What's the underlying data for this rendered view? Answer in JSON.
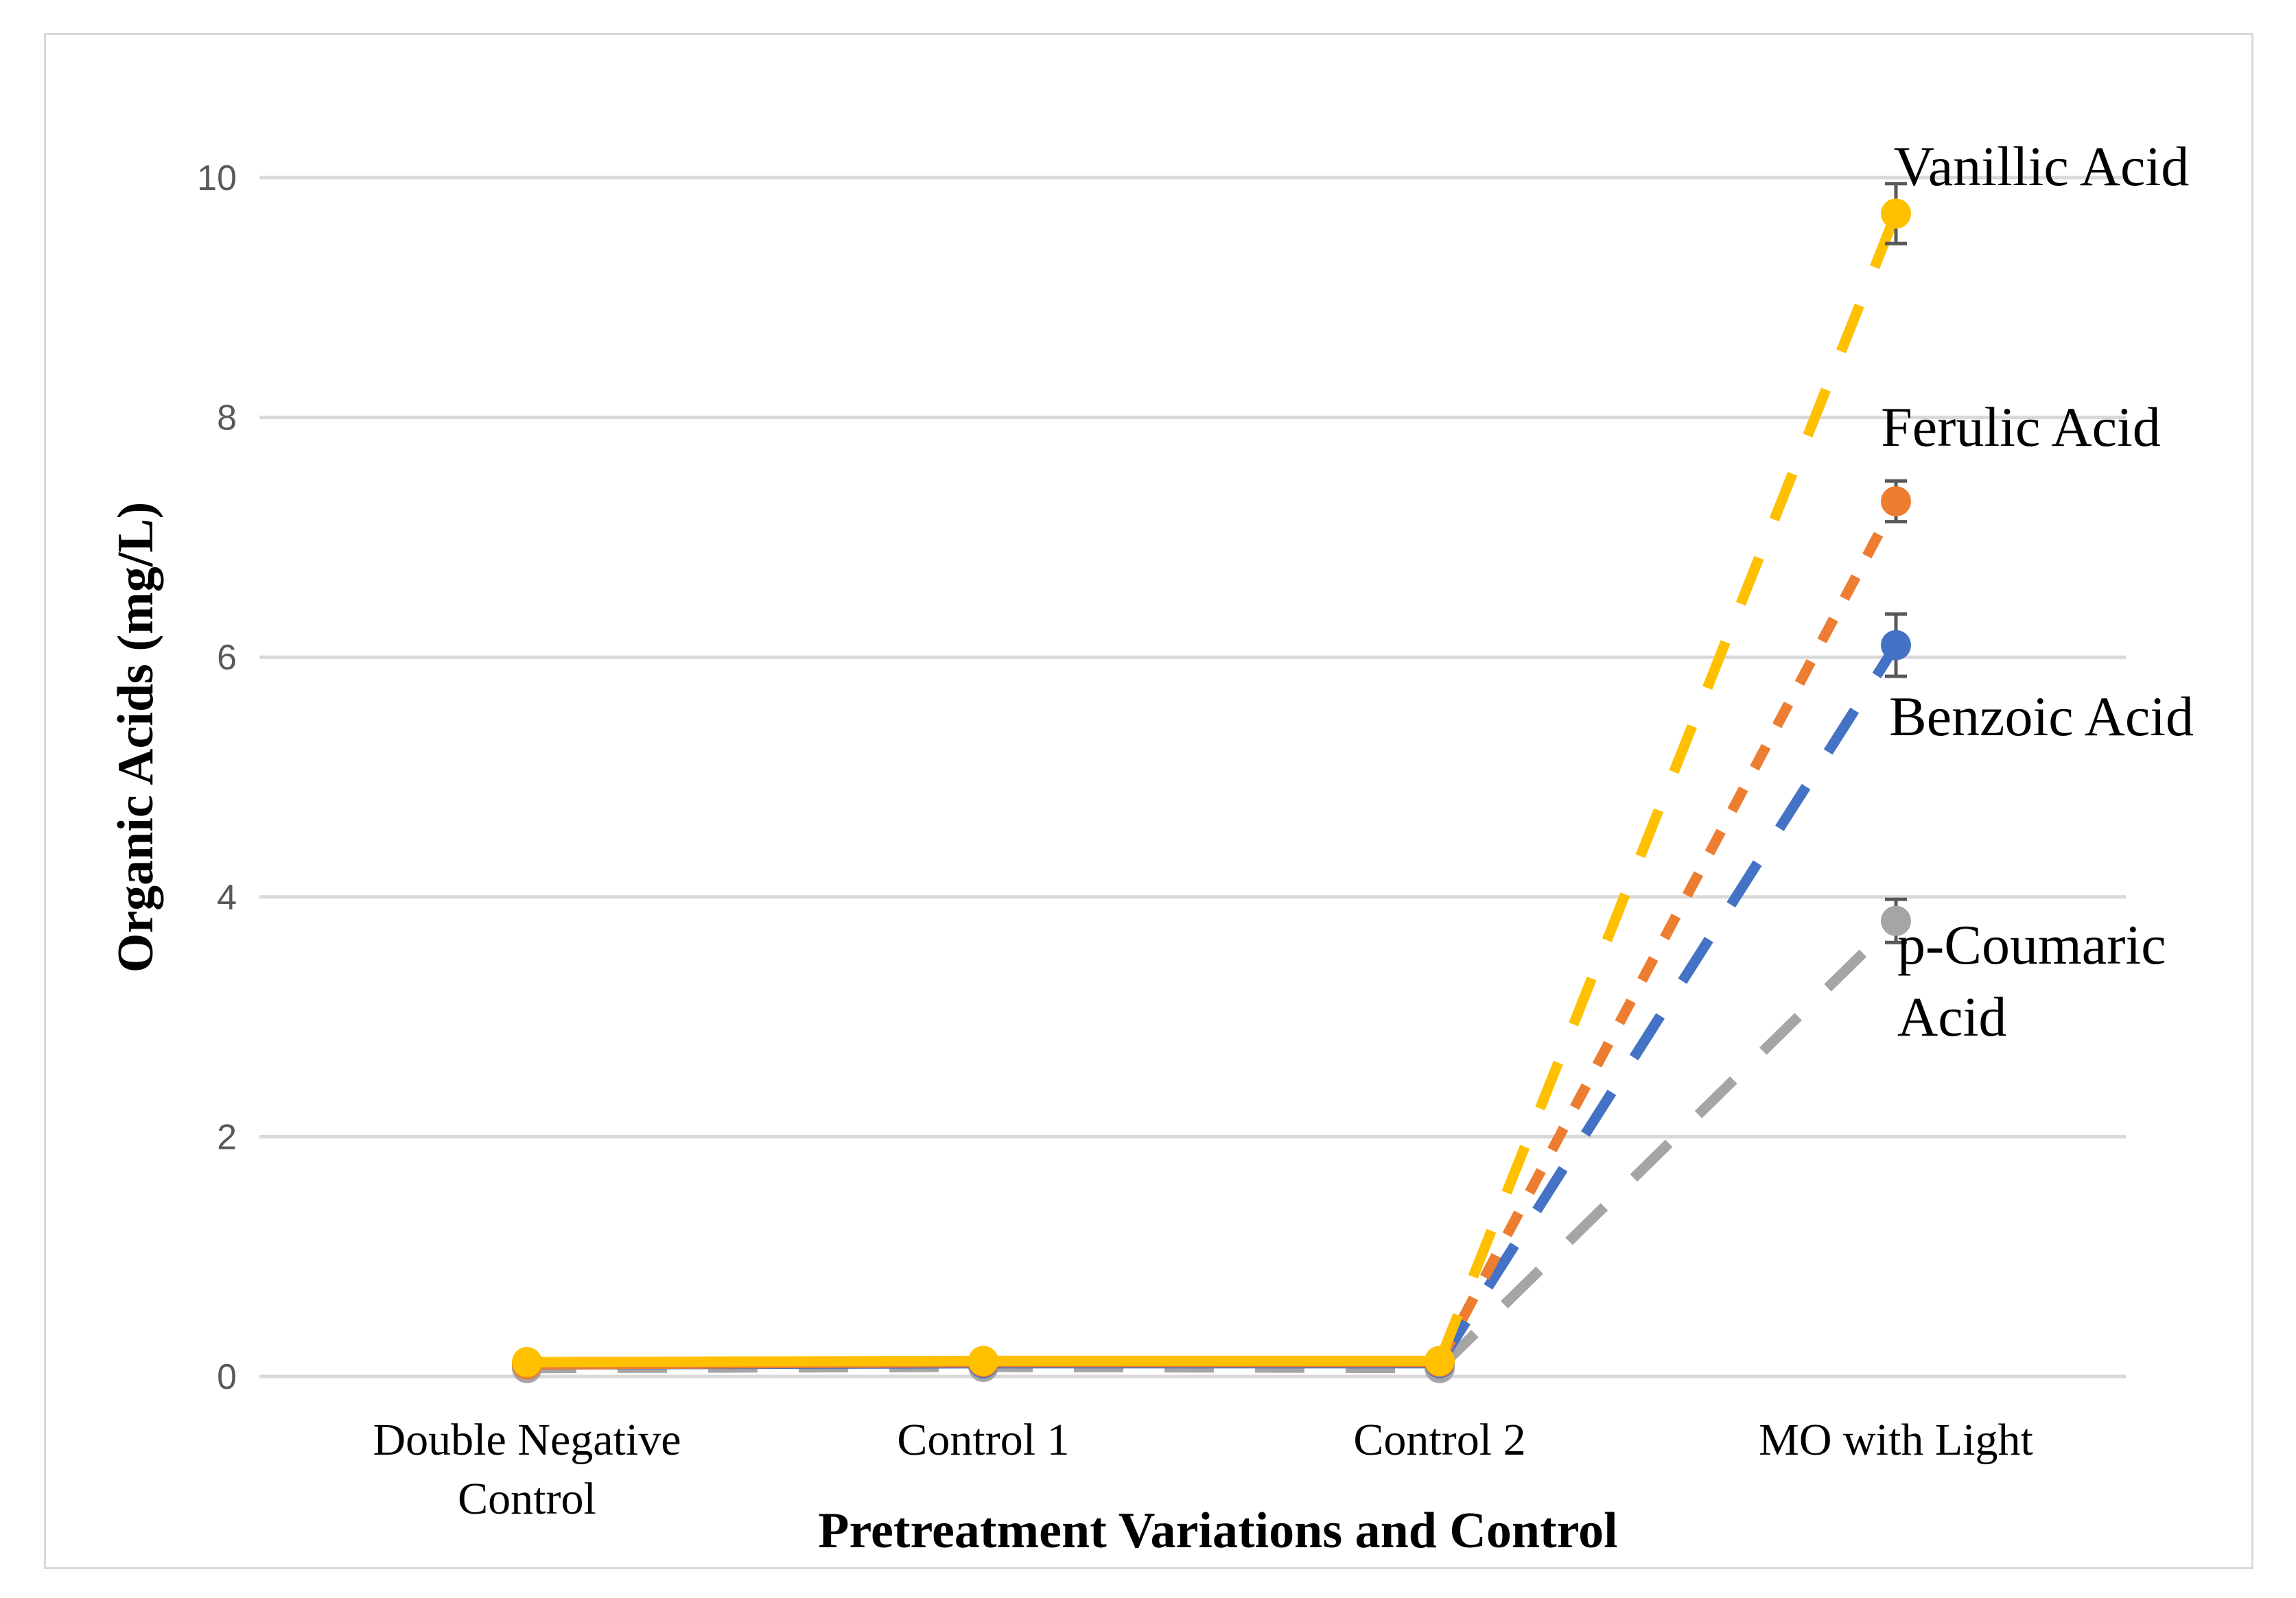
{
  "chart_data": {
    "type": "line",
    "title": "",
    "xlabel": "Pretreatment Variations and Control",
    "ylabel": "Organic Acids (mg/L)",
    "categories": [
      [
        "Double Negative",
        "Control"
      ],
      [
        "Control 1"
      ],
      [
        "Control 2"
      ],
      [
        "MO with Light"
      ]
    ],
    "ylim": [
      0,
      10
    ],
    "yticks": [
      0,
      2,
      4,
      6,
      8,
      10
    ],
    "grid": true,
    "series": [
      {
        "name": "Vanillic Acid",
        "label_lines": [
          "Vanillic Acid"
        ],
        "color": "#FFC000",
        "values": [
          0.12,
          0.13,
          0.13,
          9.7
        ],
        "errors": [
          0,
          0,
          0,
          0.25
        ],
        "style": [
          "solid",
          "solid",
          "dashed"
        ]
      },
      {
        "name": "Ferulic Acid",
        "label_lines": [
          "Ferulic Acid"
        ],
        "color": "#ED7D31",
        "values": [
          0.1,
          0.12,
          0.12,
          7.3
        ],
        "errors": [
          0,
          0,
          0,
          0.17
        ],
        "style": [
          "solid",
          "solid",
          "dashed"
        ]
      },
      {
        "name": "Benzoic Acid",
        "label_lines": [
          "Benzoic Acid"
        ],
        "color": "#4472C4",
        "values": [
          0.1,
          0.11,
          0.11,
          6.1
        ],
        "errors": [
          0,
          0,
          0,
          0.26
        ],
        "style": [
          "solid",
          "solid",
          "dashed"
        ]
      },
      {
        "name": "p-Coumaric Acid",
        "label_lines": [
          "p-Coumaric",
          "Acid"
        ],
        "color": "#A5A5A5",
        "values": [
          0.07,
          0.08,
          0.07,
          3.8
        ],
        "errors": [
          0,
          0,
          0,
          0.18
        ],
        "style": [
          "dashed",
          "dashed",
          "dashed"
        ]
      }
    ]
  }
}
